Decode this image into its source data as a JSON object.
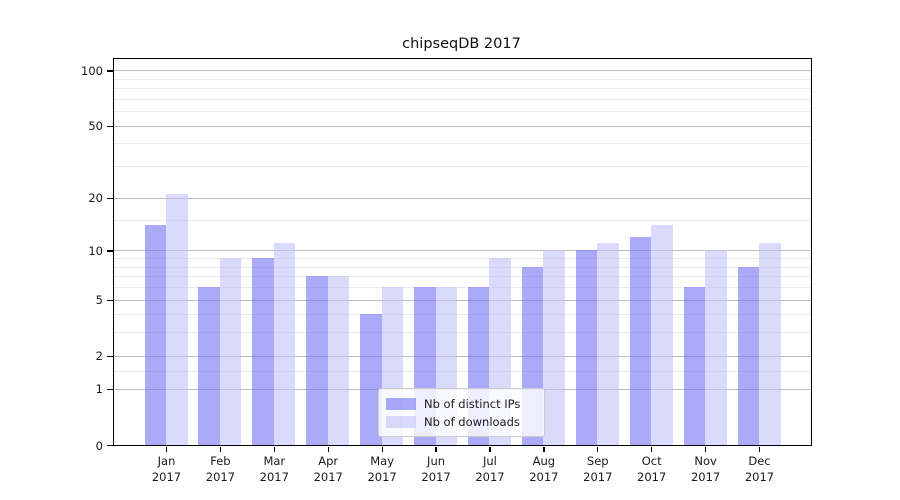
{
  "title": "chipseqDB 2017",
  "legend": {
    "items": [
      {
        "label": "Nb of distinct IPs",
        "color_hex": "#aaaaf8"
      },
      {
        "label": "Nb of downloads",
        "color_hex": "#dadafa"
      }
    ]
  },
  "colors": {
    "ips_bar": "rgba(114,114,243,0.6)",
    "ips_bar_hex": "#aaaaf8",
    "downloads_bar": "rgba(193,193,250,0.6)",
    "downloads_bar_hex": "#dadafa",
    "grid_major": "#bcbcbc",
    "grid_minor": "#eaeaea",
    "spine": "#000000",
    "background": "#ffffff"
  },
  "chart_data": {
    "type": "bar",
    "title": "chipseqDB 2017",
    "categories": [
      "Jan 2017",
      "Feb 2017",
      "Mar 2017",
      "Apr 2017",
      "May 2017",
      "Jun 2017",
      "Jul 2017",
      "Aug 2017",
      "Sep 2017",
      "Oct 2017",
      "Nov 2017",
      "Dec 2017"
    ],
    "series": [
      {
        "name": "Nb of distinct IPs",
        "values": [
          14,
          6,
          9,
          7,
          4,
          6,
          6,
          8,
          10,
          12,
          6,
          8
        ]
      },
      {
        "name": "Nb of downloads",
        "values": [
          21,
          9,
          11,
          7,
          6,
          6,
          9,
          10,
          11,
          14,
          10,
          11
        ]
      }
    ],
    "xlabel": "",
    "ylabel": "",
    "yscale": "log1p",
    "ylim": [
      0,
      115
    ],
    "yticks": [
      0,
      1,
      2,
      5,
      10,
      20,
      50,
      100
    ],
    "minor_gridlines": [
      1.5,
      3,
      4,
      6,
      7,
      8,
      9,
      15,
      30,
      40,
      60,
      70,
      80,
      90
    ],
    "grid": true,
    "legend_position": "lower-center-inside"
  }
}
